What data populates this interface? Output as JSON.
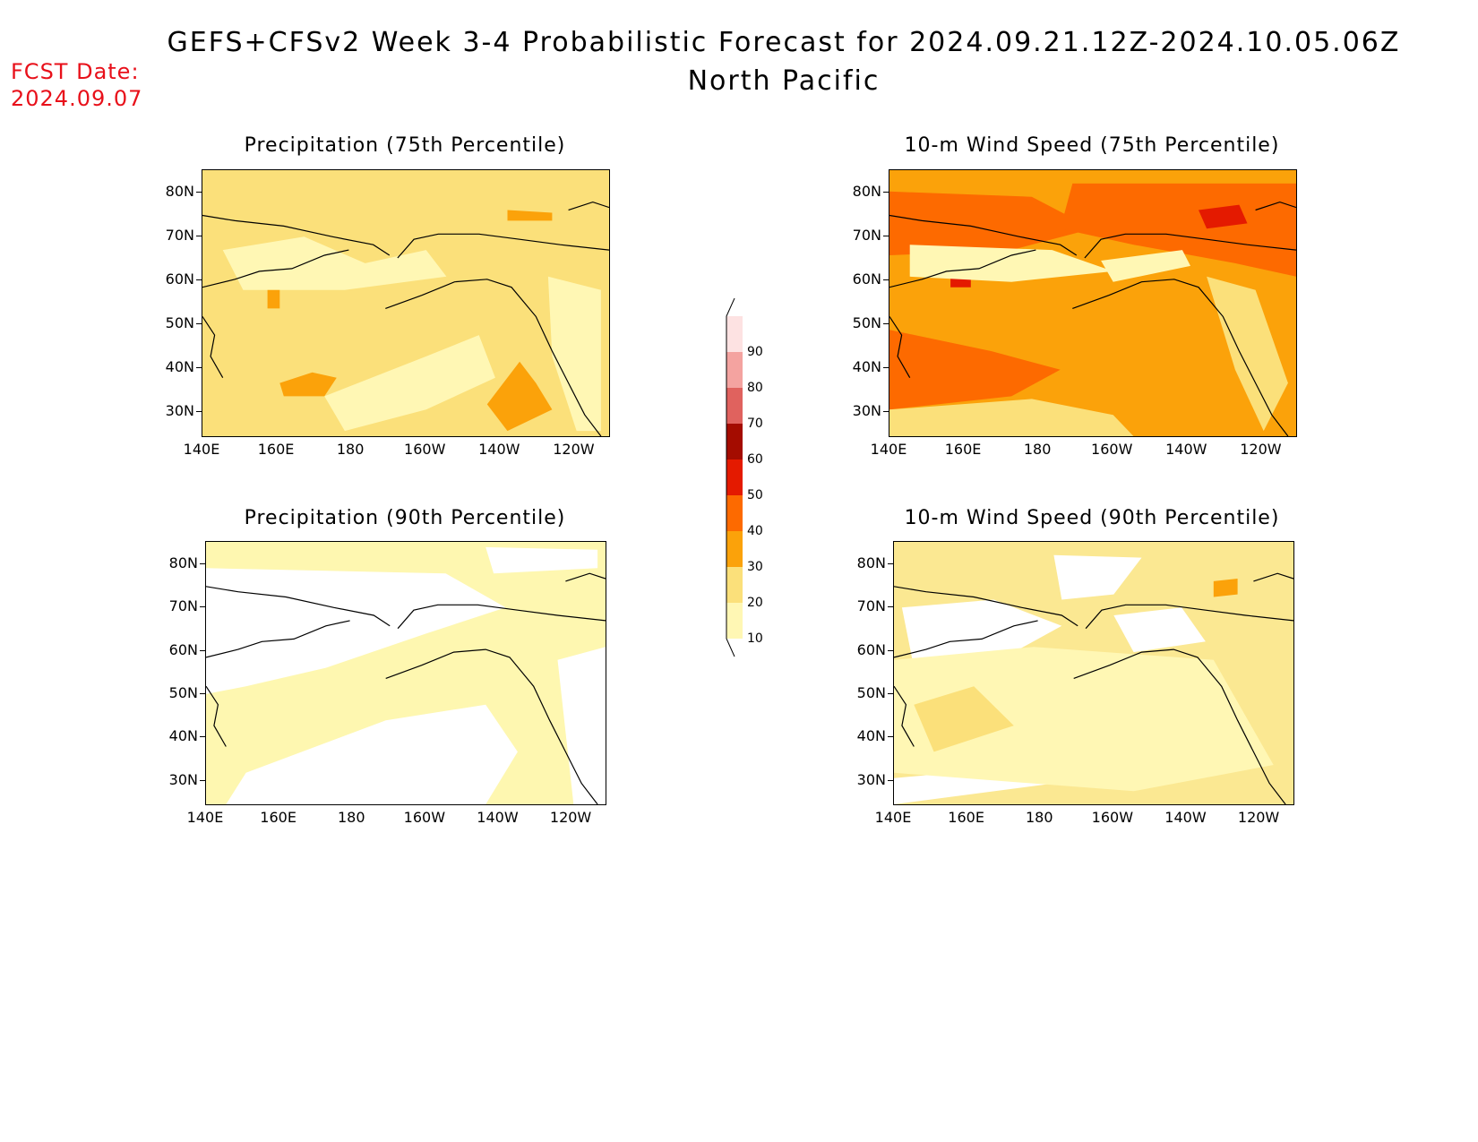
{
  "header": {
    "title": "GEFS+CFSv2 Week 3-4 Probabilistic Forecast for 2024.09.21.12Z-2024.10.05.06Z",
    "subtitle": "North Pacific",
    "fcst_label": "FCST Date:",
    "fcst_date": "2024.09.07"
  },
  "panels": [
    {
      "id": "precip-75",
      "title": "Precipitation (75th Percentile)",
      "base_color": "#fbe07a",
      "field": "precip75"
    },
    {
      "id": "wind-75",
      "title": "10-m Wind Speed (75th Percentile)",
      "base_color": "#fba20a",
      "field": "wind75"
    },
    {
      "id": "precip-90",
      "title": "Precipitation (90th Percentile)",
      "base_color": "#fef7b0",
      "field": "precip90"
    },
    {
      "id": "wind-90",
      "title": "10-m Wind Speed (90th Percentile)",
      "base_color": "#fbe892",
      "field": "wind90"
    }
  ],
  "lat_labels": [
    "80N",
    "70N",
    "60N",
    "50N",
    "40N",
    "30N"
  ],
  "lon_labels": [
    "140E",
    "160E",
    "180",
    "160W",
    "140W",
    "120W"
  ],
  "colorbar": {
    "levels": [
      "10",
      "20",
      "30",
      "40",
      "50",
      "60",
      "70",
      "80",
      "90"
    ],
    "colors": [
      "#fff7b4",
      "#fbe07a",
      "#fba20a",
      "#fd6a00",
      "#e41a00",
      "#a40c00",
      "#e0625e",
      "#f4a3a0",
      "#fde2e2"
    ]
  }
}
